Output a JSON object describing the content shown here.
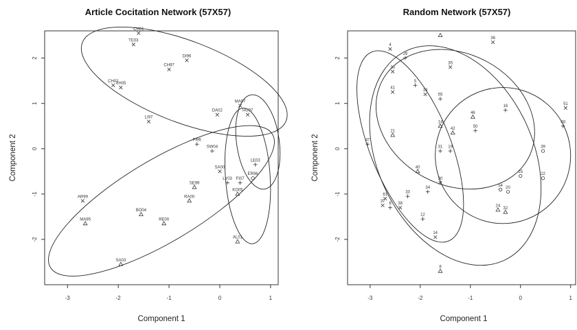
{
  "chart_data": [
    {
      "type": "scatter",
      "title": "Article Cocitation Network (57X57)",
      "xlabel": "Component 1",
      "ylabel": "Component 2",
      "xlim": [
        -3.45,
        1.15
      ],
      "ylim": [
        -3.0,
        2.6
      ],
      "xticks": [
        -3,
        -2,
        -1,
        0,
        1
      ],
      "yticks": [
        -2,
        -1,
        0,
        1,
        2
      ],
      "xtick_labels": [
        "-3",
        "-2",
        "-1",
        "0",
        "1"
      ],
      "ytick_labels": [
        "-2",
        "-1",
        "0",
        "1",
        "2"
      ],
      "ellipses": [
        {
          "cx": -0.7,
          "cy": 1.48,
          "rx": 2.15,
          "ry": 0.9,
          "angle_deg": -21
        },
        {
          "cx": -1.15,
          "cy": -1.15,
          "rx": 2.55,
          "ry": 0.9,
          "angle_deg": 31
        },
        {
          "cx": 0.55,
          "cy": -0.6,
          "rx": 0.44,
          "ry": 1.5,
          "angle_deg": 4
        },
        {
          "cx": 0.75,
          "cy": 0.15,
          "rx": 0.42,
          "ry": 1.05,
          "angle_deg": 8
        }
      ],
      "points": [
        {
          "label": "CH01",
          "x": -1.6,
          "y": 2.55,
          "marker": "x"
        },
        {
          "label": "TE03",
          "x": -1.7,
          "y": 2.3,
          "marker": "x"
        },
        {
          "label": "DI96",
          "x": -0.65,
          "y": 1.95,
          "marker": "x"
        },
        {
          "label": "CH97",
          "x": -1.0,
          "y": 1.75,
          "marker": "x"
        },
        {
          "label": "CH02",
          "x": -2.1,
          "y": 1.4,
          "marker": "x"
        },
        {
          "label": "XH05",
          "x": -1.95,
          "y": 1.35,
          "marker": "x"
        },
        {
          "label": "LI97",
          "x": -1.4,
          "y": 0.6,
          "marker": "x"
        },
        {
          "label": "DA02",
          "x": -0.05,
          "y": 0.75,
          "marker": "x"
        },
        {
          "label": "MA97",
          "x": 0.4,
          "y": 0.95,
          "marker": "x"
        },
        {
          "label": "HU97",
          "x": 0.55,
          "y": 0.75,
          "marker": "x"
        },
        {
          "label": "FI96",
          "x": -0.45,
          "y": 0.1,
          "marker": "+"
        },
        {
          "label": "SW04",
          "x": -0.15,
          "y": -0.05,
          "marker": "+"
        },
        {
          "label": "SA00",
          "x": 0.0,
          "y": -0.5,
          "marker": "x"
        },
        {
          "label": "LY03",
          "x": 0.15,
          "y": -0.75,
          "marker": "+"
        },
        {
          "label": "FI07",
          "x": 0.4,
          "y": -0.75,
          "marker": "+"
        },
        {
          "label": "LE03",
          "x": 0.7,
          "y": -0.35,
          "marker": "+"
        },
        {
          "label": "ER96",
          "x": 0.65,
          "y": -0.65,
          "marker": "o"
        },
        {
          "label": "SE99",
          "x": -0.5,
          "y": -0.85,
          "marker": "triangle"
        },
        {
          "label": "RA00",
          "x": -0.6,
          "y": -1.15,
          "marker": "triangle"
        },
        {
          "label": "KO05",
          "x": 0.35,
          "y": -1.0,
          "marker": "triangle"
        },
        {
          "label": "AL01",
          "x": 0.35,
          "y": -2.05,
          "marker": "triangle"
        },
        {
          "label": "AR99",
          "x": -2.7,
          "y": -1.15,
          "marker": "x"
        },
        {
          "label": "MA95",
          "x": -2.65,
          "y": -1.65,
          "marker": "triangle"
        },
        {
          "label": "BO04",
          "x": -1.55,
          "y": -1.45,
          "marker": "triangle"
        },
        {
          "label": "RE00",
          "x": -1.1,
          "y": -1.65,
          "marker": "triangle"
        },
        {
          "label": "SA03",
          "x": -1.95,
          "y": -2.55,
          "marker": "triangle"
        }
      ]
    },
    {
      "type": "scatter",
      "title": "Random Network (57X57)",
      "xlabel": "Component 1",
      "ylabel": "Component 2",
      "xlim": [
        -3.45,
        1.1
      ],
      "ylim": [
        -3.0,
        2.6
      ],
      "xticks": [
        -3,
        -2,
        -1,
        0,
        1
      ],
      "yticks": [
        -2,
        -1,
        0,
        1,
        2
      ],
      "xtick_labels": [
        "-3",
        "-2",
        "-1",
        "0",
        "1"
      ],
      "ytick_labels": [
        "-2",
        "-1",
        "0",
        "1",
        "2"
      ],
      "ellipses": [
        {
          "cx": -2.2,
          "cy": 0.05,
          "rx": 0.8,
          "ry": 2.25,
          "angle_deg": 22
        },
        {
          "cx": -1.3,
          "cy": 0.65,
          "rx": 1.65,
          "ry": 1.45,
          "angle_deg": -28
        },
        {
          "cx": -0.35,
          "cy": -0.15,
          "rx": 1.35,
          "ry": 1.5,
          "angle_deg": 5
        },
        {
          "cx": -1.3,
          "cy": -0.15,
          "rx": 1.55,
          "ry": 2.55,
          "angle_deg": 25
        }
      ],
      "points": [
        {
          "label": "4",
          "x": -2.6,
          "y": 2.2,
          "marker": "x"
        },
        {
          "label": "29",
          "x": -2.3,
          "y": 2.0,
          "marker": "+"
        },
        {
          "label": "",
          "x": -1.6,
          "y": 2.5,
          "marker": "triangle"
        },
        {
          "label": "36",
          "x": -0.55,
          "y": 2.35,
          "marker": "x"
        },
        {
          "label": "35",
          "x": -1.4,
          "y": 1.8,
          "marker": "x"
        },
        {
          "label": "30",
          "x": -2.55,
          "y": 1.7,
          "marker": "x"
        },
        {
          "label": "5",
          "x": -2.1,
          "y": 1.4,
          "marker": "+"
        },
        {
          "label": "41",
          "x": -2.55,
          "y": 1.25,
          "marker": "x"
        },
        {
          "label": "18",
          "x": -1.9,
          "y": 1.2,
          "marker": "x"
        },
        {
          "label": "55",
          "x": -1.6,
          "y": 1.1,
          "marker": "+"
        },
        {
          "label": "46",
          "x": -0.95,
          "y": 0.7,
          "marker": "triangle"
        },
        {
          "label": "16",
          "x": -0.3,
          "y": 0.85,
          "marker": "+"
        },
        {
          "label": "51",
          "x": 0.9,
          "y": 0.9,
          "marker": "x"
        },
        {
          "label": "48",
          "x": 0.85,
          "y": 0.5,
          "marker": "+"
        },
        {
          "label": "14",
          "x": -1.6,
          "y": 0.5,
          "marker": "triangle"
        },
        {
          "label": "42",
          "x": -1.35,
          "y": 0.35,
          "marker": "triangle"
        },
        {
          "label": "50",
          "x": -0.9,
          "y": 0.4,
          "marker": "+"
        },
        {
          "label": "21",
          "x": -2.55,
          "y": 0.3,
          "marker": "triangle"
        },
        {
          "label": "47",
          "x": -3.05,
          "y": 0.1,
          "marker": "+"
        },
        {
          "label": "31",
          "x": -1.6,
          "y": -0.05,
          "marker": "+"
        },
        {
          "label": "19",
          "x": -1.4,
          "y": -0.05,
          "marker": "+"
        },
        {
          "label": "39",
          "x": 0.45,
          "y": -0.05,
          "marker": "o"
        },
        {
          "label": "40",
          "x": -2.05,
          "y": -0.5,
          "marker": "triangle"
        },
        {
          "label": "25",
          "x": 0.0,
          "y": -0.6,
          "marker": "o"
        },
        {
          "label": "22",
          "x": 0.45,
          "y": -0.65,
          "marker": "o"
        },
        {
          "label": "30",
          "x": -1.6,
          "y": -0.75,
          "marker": "x"
        },
        {
          "label": "34",
          "x": -1.85,
          "y": -0.95,
          "marker": "+"
        },
        {
          "label": "33",
          "x": -2.25,
          "y": -1.05,
          "marker": "+"
        },
        {
          "label": "54",
          "x": -0.4,
          "y": -0.9,
          "marker": "o"
        },
        {
          "label": "20",
          "x": -0.25,
          "y": -0.95,
          "marker": "o"
        },
        {
          "label": "61",
          "x": -2.7,
          "y": -1.1,
          "marker": "x"
        },
        {
          "label": "37",
          "x": -2.75,
          "y": -1.25,
          "marker": "x"
        },
        {
          "label": "6",
          "x": -2.6,
          "y": -1.3,
          "marker": "+"
        },
        {
          "label": "38",
          "x": -2.4,
          "y": -1.3,
          "marker": "x"
        },
        {
          "label": "24",
          "x": -0.45,
          "y": -1.35,
          "marker": "triangle"
        },
        {
          "label": "32",
          "x": -0.3,
          "y": -1.4,
          "marker": "triangle"
        },
        {
          "label": "12",
          "x": -1.95,
          "y": -1.55,
          "marker": "+"
        },
        {
          "label": "14",
          "x": -1.7,
          "y": -1.95,
          "marker": "x"
        },
        {
          "label": "8",
          "x": -1.6,
          "y": -2.7,
          "marker": "triangle"
        }
      ]
    }
  ]
}
